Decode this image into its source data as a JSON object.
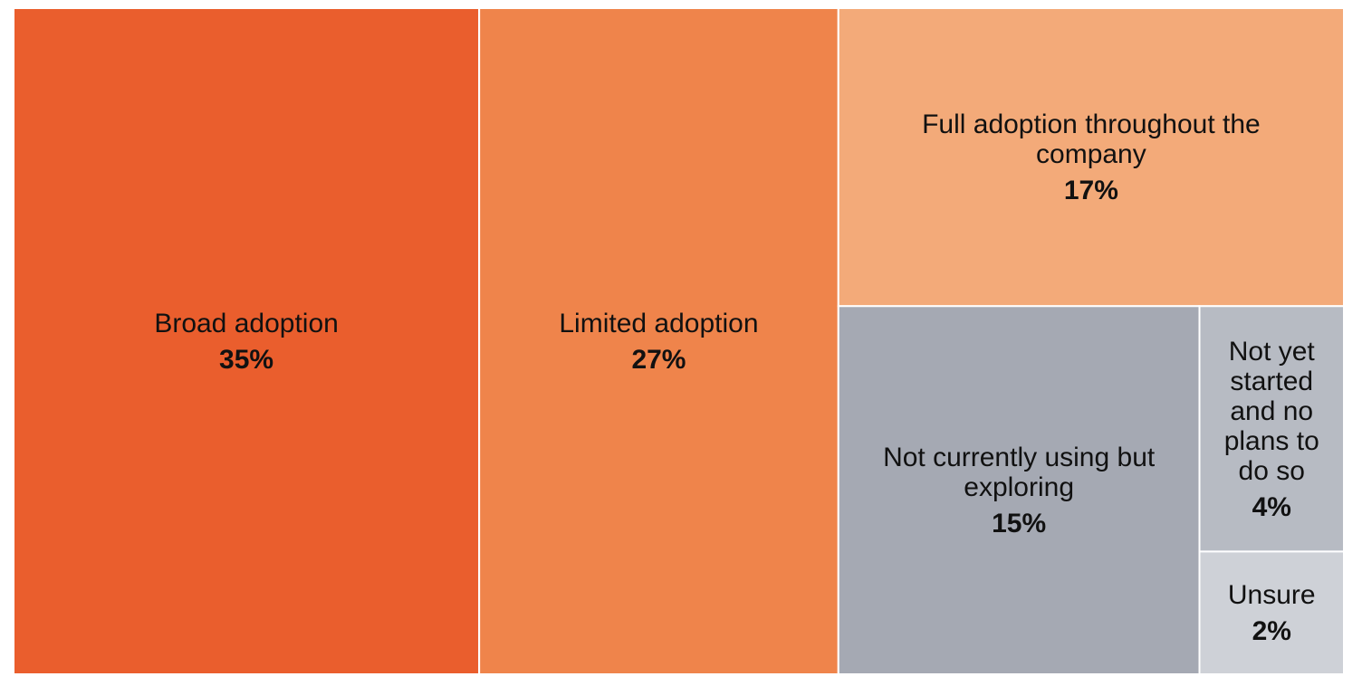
{
  "chart_data": {
    "type": "treemap",
    "unit": "%",
    "items": [
      {
        "label_lines": [
          "Broad adoption"
        ],
        "value": 35,
        "value_text": "35%",
        "color": "#EA5E2D"
      },
      {
        "label_lines": [
          "Limited adoption"
        ],
        "value": 27,
        "value_text": "27%",
        "color": "#EF844B"
      },
      {
        "label_lines": [
          "Full adoption throughout the",
          "company"
        ],
        "value": 17,
        "value_text": "17%",
        "color": "#F3AA79"
      },
      {
        "label_lines": [
          "Not currently using but",
          "exploring"
        ],
        "value": 15,
        "value_text": "15%",
        "color": "#A5A9B3"
      },
      {
        "label_lines": [
          "Not yet",
          "started",
          "and no",
          "plans to",
          "do so"
        ],
        "value": 4,
        "value_text": "4%",
        "color": "#B7BBC3"
      },
      {
        "label_lines": [
          "Unsure"
        ],
        "value": 2,
        "value_text": "2%",
        "color": "#CED1D7"
      }
    ]
  }
}
